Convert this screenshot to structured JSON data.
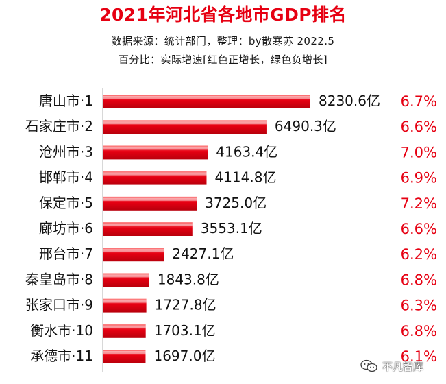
{
  "chart_data": {
    "type": "bar",
    "orientation": "horizontal",
    "title": "2021年河北省各地市GDP排名",
    "subtitle": [
      "数据来源：统计部门，整理：by散寒苏 2022.5",
      "百分比：实际增速[红色正增长，绿色负增长]"
    ],
    "categories": [
      "唐山市·1",
      "石家庄市·2",
      "沧州市·3",
      "邯郸市·4",
      "保定市·5",
      "廊坊市·6",
      "邢台市·7",
      "秦皇岛市·8",
      "张家口市·9",
      "衡水市·10",
      "承德市·11"
    ],
    "values": [
      8230.6,
      6490.3,
      4163.4,
      4114.8,
      3725.0,
      3553.1,
      2427.1,
      1843.8,
      1727.8,
      1703.1,
      1697.0
    ],
    "value_labels": [
      "8230.6亿",
      "6490.3亿",
      "4163.4亿",
      "4114.8亿",
      "3725.0亿",
      "3553.1亿",
      "2427.1亿",
      "1843.8亿",
      "1727.8亿",
      "1703.1亿",
      "1697.0亿"
    ],
    "growth_rates": [
      "6.7%",
      "6.6%",
      "7.0%",
      "6.9%",
      "7.2%",
      "6.6%",
      "6.2%",
      "6.8%",
      "6.3%",
      "6.8%",
      "6.1%"
    ],
    "xlim": [
      0,
      8230.6
    ],
    "grid": false,
    "legend": false,
    "colors": {
      "bar_main": "#e60012",
      "bar_light": "#ff8a8a",
      "growth_positive": "#e60012",
      "text": "#111111"
    }
  },
  "watermark": {
    "text": "不凡智库",
    "icon": "wechat-icon"
  }
}
